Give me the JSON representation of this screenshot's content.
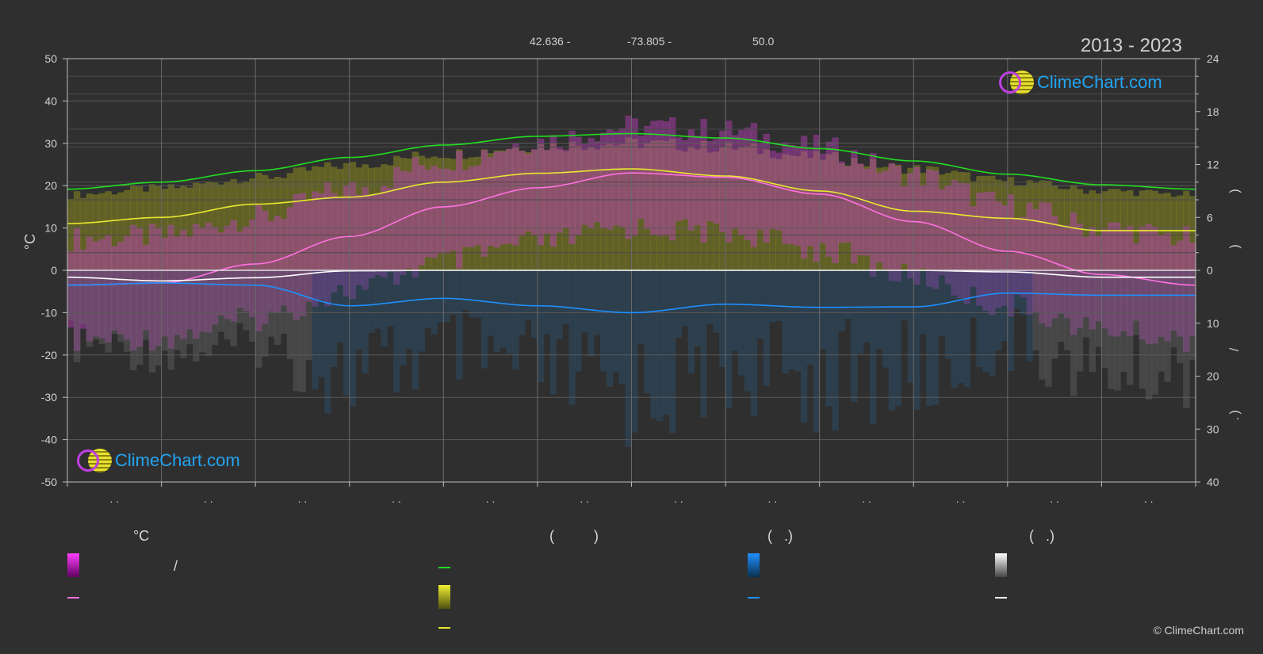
{
  "header": {
    "lat": "42.636 -",
    "lon": "-73.805 -",
    "elev": "50.0",
    "years": "2013 - 2023"
  },
  "brand": {
    "logo_text": "ClimeChart.com",
    "copyright": "© ClimeChart.com"
  },
  "legend": {
    "col1_head": "°C",
    "col2_head": "(          )",
    "col3_head": "(   .)",
    "col4_head": "(   .)",
    "col1_slash": "/",
    "colors": {
      "magenta": "#e020e0",
      "pink": "#ff70e0",
      "green": "#22dd22",
      "yellow": "#e8e830",
      "blue": "#1e90ff",
      "white": "#ffffff"
    }
  },
  "chart_data": {
    "type": "line",
    "x_tick_labels": [
      ". .",
      ". .",
      ". .",
      ". .",
      ". .",
      ". .",
      ". .",
      ". .",
      ". .",
      ". .",
      ". .",
      ". ."
    ],
    "left_axis": {
      "label": "°C",
      "ylim": [
        -50,
        50
      ],
      "ticks": [
        50,
        40,
        30,
        20,
        10,
        0,
        -10,
        -20,
        -30,
        -40,
        -50
      ]
    },
    "right_axis_top": {
      "ticks": [
        24,
        18,
        12,
        6,
        0
      ]
    },
    "right_axis_bottom": {
      "ticks": [
        10,
        20,
        30,
        40
      ]
    },
    "right_axis_labels": [
      ")",
      ")",
      "/",
      ")",
      "."
    ],
    "x": [
      0,
      1,
      2,
      3,
      4,
      5,
      6,
      7,
      8,
      9,
      10,
      11,
      12
    ],
    "series": [
      {
        "key": "daylight",
        "values": [
          9.2,
          10.0,
          11.3,
          12.8,
          14.2,
          15.2,
          15.5,
          15.0,
          13.8,
          12.4,
          10.9,
          9.7,
          9.2
        ]
      },
      {
        "key": "sunshine",
        "values": [
          5.3,
          6.0,
          7.5,
          8.3,
          10.0,
          11.0,
          11.5,
          10.7,
          9.0,
          6.7,
          5.9,
          4.5,
          4.5
        ]
      },
      {
        "key": "mean_temp",
        "values": [
          -3.5,
          -3.0,
          1.5,
          8.0,
          15.0,
          19.5,
          23.0,
          22.0,
          18.0,
          11.5,
          4.5,
          -1.0,
          -3.5
        ]
      },
      {
        "key": "rain_mm",
        "values": [
          2.8,
          2.4,
          2.8,
          6.7,
          5.3,
          6.7,
          8.0,
          6.4,
          7.0,
          6.9,
          4.3,
          4.7,
          4.7
        ]
      },
      {
        "key": "snow_mm",
        "values": [
          1.3,
          2.0,
          1.4,
          0.1,
          0.0,
          0.0,
          0.0,
          0.0,
          0.0,
          0.0,
          0.3,
          1.3,
          1.3
        ]
      }
    ]
  }
}
